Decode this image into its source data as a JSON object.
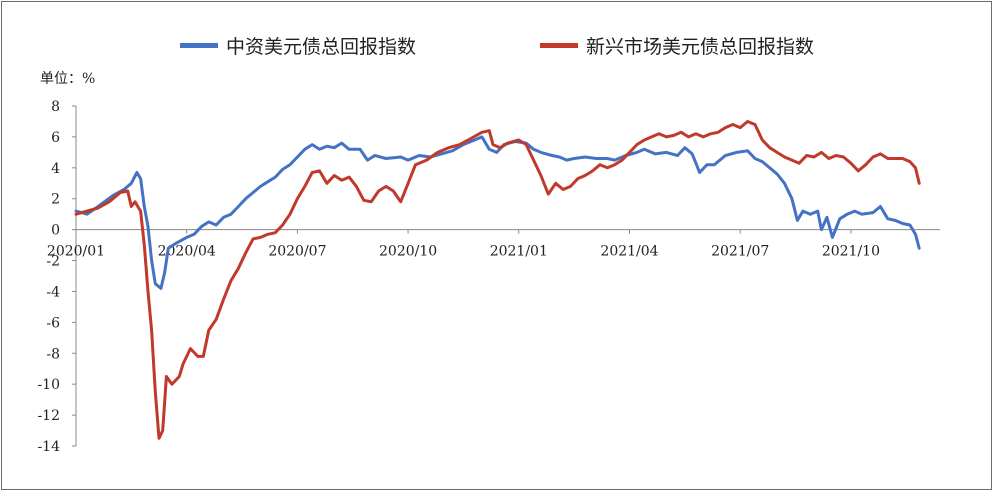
{
  "chart_data": {
    "type": "line",
    "unit_label": "单位：%",
    "ylim": [
      -14,
      8
    ],
    "yticks": [
      8,
      6,
      4,
      2,
      0,
      -2,
      -4,
      -6,
      -8,
      -10,
      -12,
      -14
    ],
    "x_tick_labels": [
      "2020/01",
      "2020/04",
      "2020/07",
      "2020/10",
      "2021/01",
      "2021/04",
      "2021/07",
      "2021/10"
    ],
    "legend_position": "top",
    "grid": false,
    "series": [
      {
        "name": "中资美元债总回报指数",
        "color": "#4472C4",
        "points": [
          [
            0,
            1.2
          ],
          [
            0.3,
            1.0
          ],
          [
            0.6,
            1.5
          ],
          [
            1.0,
            2.2
          ],
          [
            1.3,
            2.6
          ],
          [
            1.5,
            3.0
          ],
          [
            1.65,
            3.7
          ],
          [
            1.75,
            3.3
          ],
          [
            1.85,
            1.5
          ],
          [
            1.95,
            0.2
          ],
          [
            2.05,
            -2.0
          ],
          [
            2.15,
            -3.5
          ],
          [
            2.3,
            -3.8
          ],
          [
            2.4,
            -2.8
          ],
          [
            2.5,
            -1.2
          ],
          [
            2.7,
            -0.9
          ],
          [
            3.0,
            -0.5
          ],
          [
            3.2,
            -0.3
          ],
          [
            3.4,
            0.2
          ],
          [
            3.6,
            0.5
          ],
          [
            3.8,
            0.3
          ],
          [
            4.0,
            0.8
          ],
          [
            4.2,
            1.0
          ],
          [
            4.4,
            1.5
          ],
          [
            4.6,
            2.0
          ],
          [
            4.8,
            2.4
          ],
          [
            5.0,
            2.8
          ],
          [
            5.2,
            3.1
          ],
          [
            5.4,
            3.4
          ],
          [
            5.6,
            3.9
          ],
          [
            5.8,
            4.2
          ],
          [
            6.0,
            4.7
          ],
          [
            6.2,
            5.2
          ],
          [
            6.4,
            5.5
          ],
          [
            6.6,
            5.2
          ],
          [
            6.8,
            5.4
          ],
          [
            7.0,
            5.3
          ],
          [
            7.2,
            5.6
          ],
          [
            7.4,
            5.2
          ],
          [
            7.7,
            5.2
          ],
          [
            7.9,
            4.5
          ],
          [
            8.1,
            4.8
          ],
          [
            8.4,
            4.6
          ],
          [
            8.8,
            4.7
          ],
          [
            9.0,
            4.5
          ],
          [
            9.3,
            4.8
          ],
          [
            9.6,
            4.7
          ],
          [
            9.9,
            4.9
          ],
          [
            10.2,
            5.1
          ],
          [
            10.5,
            5.5
          ],
          [
            10.8,
            5.8
          ],
          [
            11.0,
            6.0
          ],
          [
            11.2,
            5.2
          ],
          [
            11.4,
            5.0
          ],
          [
            11.6,
            5.5
          ],
          [
            11.9,
            5.7
          ],
          [
            12.2,
            5.6
          ],
          [
            12.4,
            5.2
          ],
          [
            12.6,
            5.0
          ],
          [
            12.9,
            4.8
          ],
          [
            13.1,
            4.7
          ],
          [
            13.3,
            4.5
          ],
          [
            13.5,
            4.6
          ],
          [
            13.8,
            4.7
          ],
          [
            14.1,
            4.6
          ],
          [
            14.4,
            4.6
          ],
          [
            14.6,
            4.5
          ],
          [
            14.9,
            4.8
          ],
          [
            15.2,
            5.0
          ],
          [
            15.4,
            5.2
          ],
          [
            15.7,
            4.9
          ],
          [
            16.0,
            5.0
          ],
          [
            16.3,
            4.8
          ],
          [
            16.5,
            5.3
          ],
          [
            16.7,
            4.9
          ],
          [
            16.9,
            3.7
          ],
          [
            17.1,
            4.2
          ],
          [
            17.3,
            4.2
          ],
          [
            17.6,
            4.8
          ],
          [
            17.9,
            5.0
          ],
          [
            18.2,
            5.1
          ],
          [
            18.4,
            4.6
          ],
          [
            18.6,
            4.4
          ],
          [
            18.8,
            4.0
          ],
          [
            19.0,
            3.6
          ],
          [
            19.2,
            3.0
          ],
          [
            19.4,
            2.0
          ],
          [
            19.55,
            0.6
          ],
          [
            19.7,
            1.2
          ],
          [
            19.9,
            1.0
          ],
          [
            20.1,
            1.2
          ],
          [
            20.2,
            0.0
          ],
          [
            20.35,
            0.8
          ],
          [
            20.5,
            -0.5
          ],
          [
            20.7,
            0.7
          ],
          [
            20.9,
            1.0
          ],
          [
            21.1,
            1.2
          ],
          [
            21.3,
            1.0
          ],
          [
            21.6,
            1.1
          ],
          [
            21.8,
            1.5
          ],
          [
            22.0,
            0.7
          ],
          [
            22.2,
            0.6
          ],
          [
            22.4,
            0.4
          ],
          [
            22.6,
            0.3
          ],
          [
            22.75,
            -0.3
          ],
          [
            22.85,
            -1.2
          ]
        ]
      },
      {
        "name": "新兴市场美元债总回报指数",
        "color": "#C0392B",
        "points": [
          [
            0,
            1.0
          ],
          [
            0.3,
            1.2
          ],
          [
            0.6,
            1.4
          ],
          [
            0.9,
            1.8
          ],
          [
            1.2,
            2.4
          ],
          [
            1.4,
            2.5
          ],
          [
            1.5,
            1.5
          ],
          [
            1.6,
            1.8
          ],
          [
            1.75,
            1.2
          ],
          [
            1.85,
            -1.0
          ],
          [
            1.95,
            -4.0
          ],
          [
            2.05,
            -6.5
          ],
          [
            2.15,
            -10.5
          ],
          [
            2.25,
            -13.5
          ],
          [
            2.35,
            -13.0
          ],
          [
            2.45,
            -9.5
          ],
          [
            2.6,
            -10.0
          ],
          [
            2.8,
            -9.5
          ],
          [
            2.9,
            -8.7
          ],
          [
            3.1,
            -7.7
          ],
          [
            3.3,
            -8.2
          ],
          [
            3.45,
            -8.2
          ],
          [
            3.6,
            -6.5
          ],
          [
            3.8,
            -5.8
          ],
          [
            4.0,
            -4.5
          ],
          [
            4.2,
            -3.3
          ],
          [
            4.4,
            -2.5
          ],
          [
            4.6,
            -1.5
          ],
          [
            4.8,
            -0.6
          ],
          [
            5.0,
            -0.5
          ],
          [
            5.2,
            -0.3
          ],
          [
            5.4,
            -0.2
          ],
          [
            5.6,
            0.3
          ],
          [
            5.8,
            1.0
          ],
          [
            6.0,
            2.0
          ],
          [
            6.2,
            2.8
          ],
          [
            6.4,
            3.7
          ],
          [
            6.6,
            3.8
          ],
          [
            6.8,
            3.0
          ],
          [
            7.0,
            3.5
          ],
          [
            7.2,
            3.2
          ],
          [
            7.4,
            3.4
          ],
          [
            7.6,
            2.8
          ],
          [
            7.8,
            1.9
          ],
          [
            8.0,
            1.8
          ],
          [
            8.2,
            2.5
          ],
          [
            8.4,
            2.8
          ],
          [
            8.6,
            2.5
          ],
          [
            8.8,
            1.8
          ],
          [
            9.0,
            3.0
          ],
          [
            9.2,
            4.2
          ],
          [
            9.5,
            4.5
          ],
          [
            9.8,
            5.0
          ],
          [
            10.1,
            5.3
          ],
          [
            10.4,
            5.5
          ],
          [
            10.7,
            5.9
          ],
          [
            11.0,
            6.3
          ],
          [
            11.2,
            6.4
          ],
          [
            11.3,
            5.5
          ],
          [
            11.5,
            5.3
          ],
          [
            11.7,
            5.6
          ],
          [
            12.0,
            5.8
          ],
          [
            12.2,
            5.5
          ],
          [
            12.4,
            4.5
          ],
          [
            12.6,
            3.5
          ],
          [
            12.8,
            2.3
          ],
          [
            13.0,
            3.0
          ],
          [
            13.2,
            2.6
          ],
          [
            13.4,
            2.8
          ],
          [
            13.6,
            3.3
          ],
          [
            13.8,
            3.5
          ],
          [
            14.0,
            3.8
          ],
          [
            14.2,
            4.2
          ],
          [
            14.4,
            4.0
          ],
          [
            14.6,
            4.2
          ],
          [
            14.8,
            4.5
          ],
          [
            15.0,
            5.0
          ],
          [
            15.2,
            5.5
          ],
          [
            15.4,
            5.8
          ],
          [
            15.6,
            6.0
          ],
          [
            15.8,
            6.2
          ],
          [
            16.0,
            6.0
          ],
          [
            16.2,
            6.1
          ],
          [
            16.4,
            6.3
          ],
          [
            16.6,
            6.0
          ],
          [
            16.8,
            6.2
          ],
          [
            17.0,
            6.0
          ],
          [
            17.2,
            6.2
          ],
          [
            17.4,
            6.3
          ],
          [
            17.6,
            6.6
          ],
          [
            17.8,
            6.8
          ],
          [
            18.0,
            6.6
          ],
          [
            18.2,
            7.0
          ],
          [
            18.4,
            6.8
          ],
          [
            18.6,
            5.8
          ],
          [
            18.8,
            5.3
          ],
          [
            19.0,
            5.0
          ],
          [
            19.2,
            4.7
          ],
          [
            19.4,
            4.5
          ],
          [
            19.6,
            4.3
          ],
          [
            19.8,
            4.8
          ],
          [
            20.0,
            4.7
          ],
          [
            20.2,
            5.0
          ],
          [
            20.4,
            4.6
          ],
          [
            20.6,
            4.8
          ],
          [
            20.8,
            4.7
          ],
          [
            21.0,
            4.3
          ],
          [
            21.2,
            3.8
          ],
          [
            21.4,
            4.2
          ],
          [
            21.6,
            4.7
          ],
          [
            21.8,
            4.9
          ],
          [
            22.0,
            4.6
          ],
          [
            22.2,
            4.6
          ],
          [
            22.4,
            4.6
          ],
          [
            22.6,
            4.4
          ],
          [
            22.75,
            4.0
          ],
          [
            22.85,
            3.0
          ]
        ]
      }
    ]
  }
}
